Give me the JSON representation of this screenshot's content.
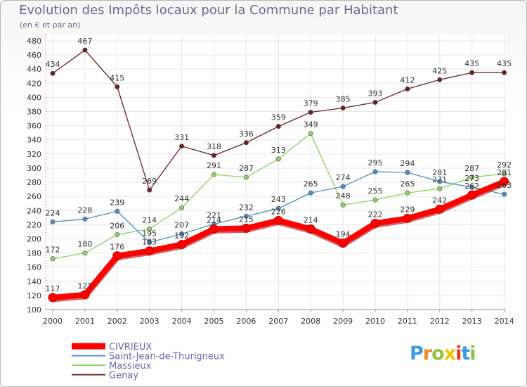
{
  "chart_data": {
    "type": "line",
    "title": "Evolution des Impôts locaux pour la Commune par Habitant",
    "subtitle": "(en € et par an)",
    "x": [
      "2000",
      "2001",
      "2002",
      "2003",
      "2004",
      "2005",
      "2006",
      "2007",
      "2008",
      "2009",
      "2010",
      "2011",
      "2012",
      "2013",
      "2014"
    ],
    "ylim": [
      100,
      480
    ],
    "yticks": [
      100,
      120,
      140,
      160,
      180,
      200,
      220,
      240,
      260,
      280,
      300,
      320,
      340,
      360,
      380,
      400,
      420,
      440,
      460,
      480
    ],
    "grid": true,
    "legend_position": "bottom-left",
    "series": [
      {
        "name": "CIVRIEUX",
        "color": "#ff0000",
        "values": [
          117,
          121,
          176,
          183,
          192,
          214,
          215,
          226,
          214,
          194,
          222,
          229,
          242,
          262,
          281
        ]
      },
      {
        "name": "Saint-Jean-de-Thurigneux",
        "color": "#4a8fc8",
        "values": [
          224,
          228,
          239,
          195,
          207,
          221,
          232,
          243,
          265,
          274,
          295,
          294,
          281,
          273,
          263
        ]
      },
      {
        "name": "Massieux",
        "color": "#8dd35f",
        "values": [
          172,
          180,
          206,
          214,
          244,
          291,
          287,
          313,
          349,
          248,
          255,
          265,
          271,
          287,
          292
        ]
      },
      {
        "name": "Genay",
        "color": "#6b1f1f",
        "values": [
          434,
          467,
          415,
          269,
          331,
          318,
          336,
          359,
          379,
          385,
          393,
          412,
          425,
          435,
          435
        ]
      }
    ]
  },
  "logo": {
    "text": "Proxiti",
    "letter_colors": [
      "#3b9be0",
      "#f08a1e",
      "#8cc43c",
      "#f2c200",
      "#e8371b",
      "#3b9be0",
      "#8cc43c"
    ]
  }
}
